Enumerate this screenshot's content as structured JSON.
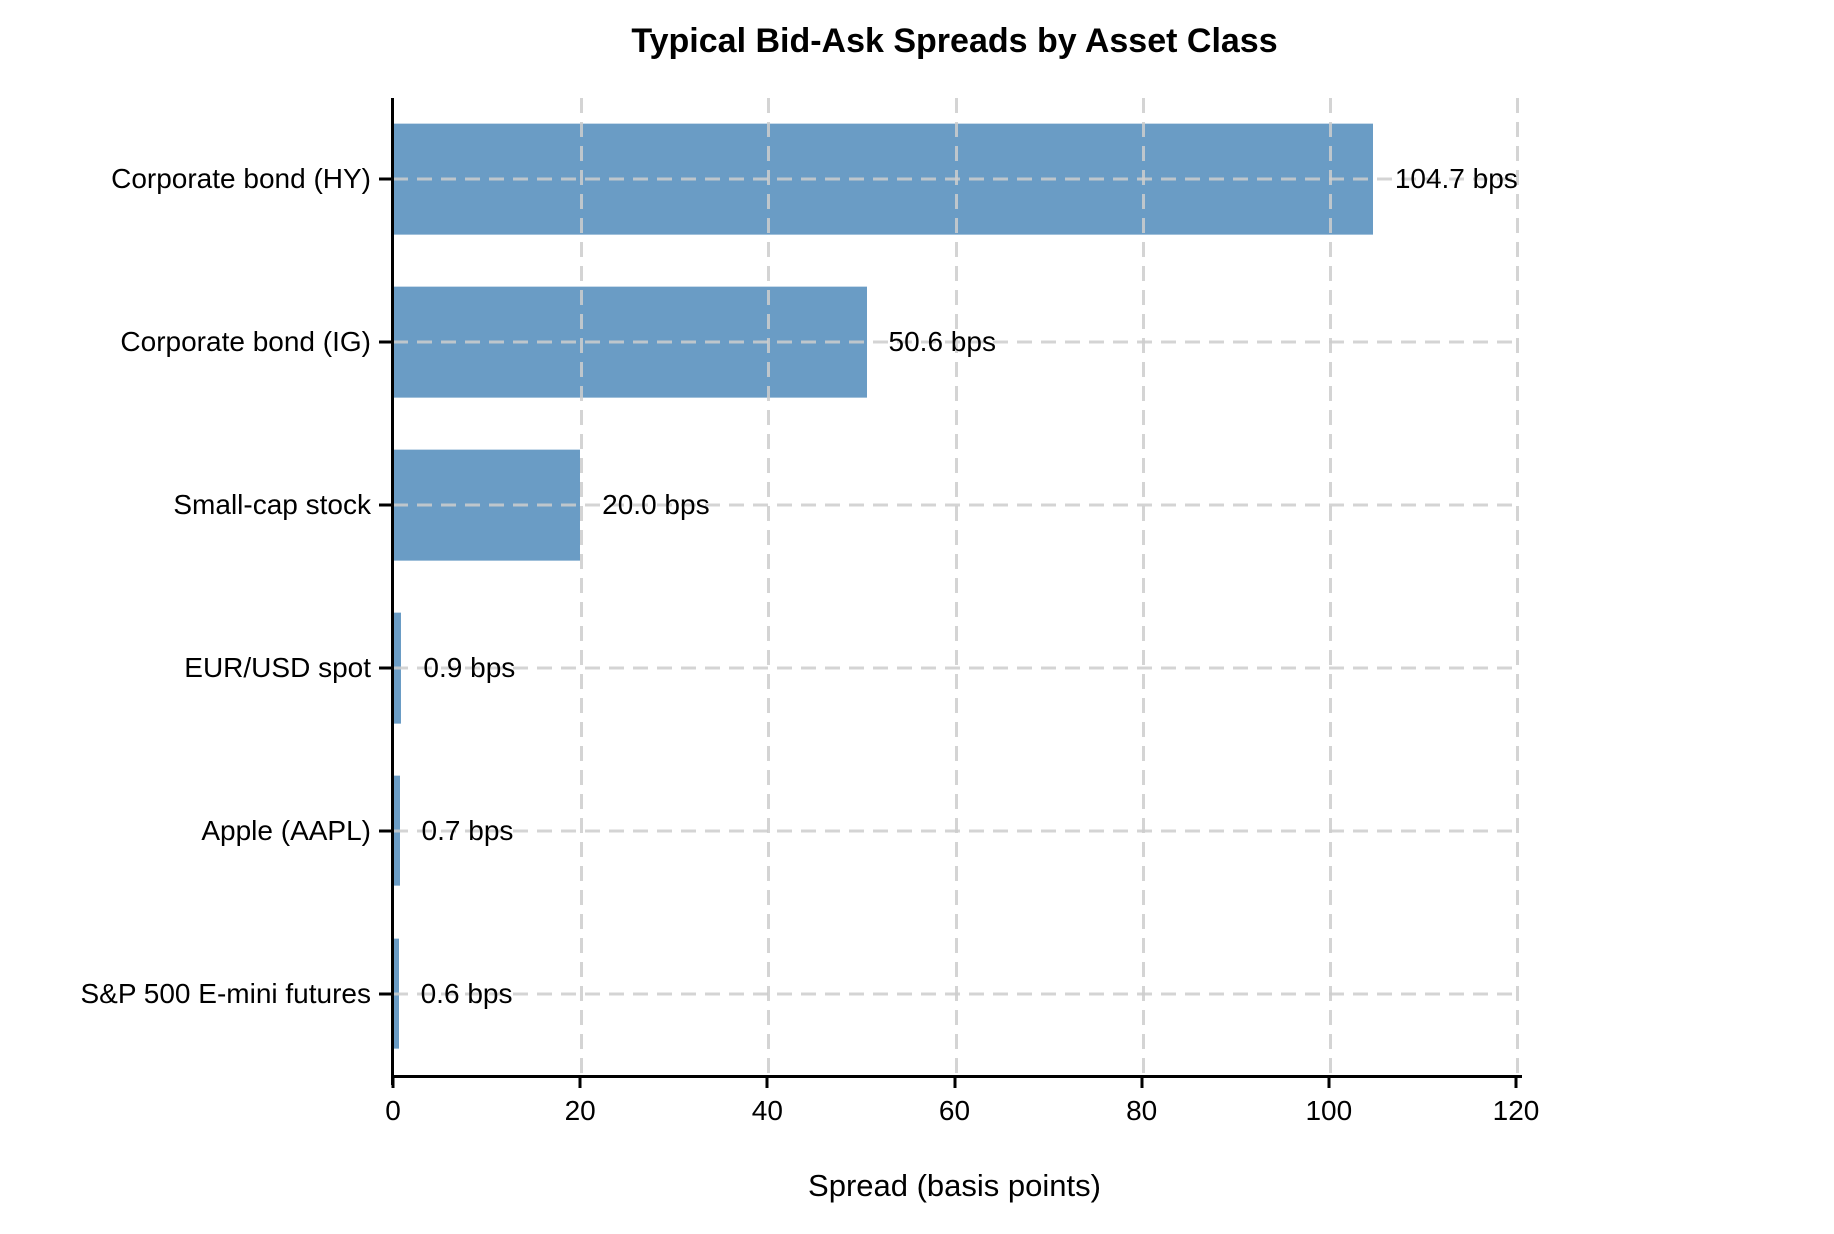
{
  "chart_data": {
    "type": "bar",
    "orientation": "horizontal",
    "title": "Typical Bid-Ask Spreads by Asset Class",
    "xlabel": "Spread (basis points)",
    "categories": [
      "Corporate bond (HY)",
      "Corporate bond (IG)",
      "Small-cap stock",
      "EUR/USD spot",
      "Apple (AAPL)",
      "S&P 500 E-mini futures"
    ],
    "values": [
      104.7,
      50.6,
      20.0,
      0.9,
      0.7,
      0.6
    ],
    "value_labels": [
      "104.7 bps",
      "50.6 bps",
      "20.0 bps",
      "0.9 bps",
      "0.7 bps",
      "0.6 bps"
    ],
    "xlim": [
      0,
      120
    ],
    "xticks": [
      0,
      20,
      40,
      60,
      80,
      100,
      120
    ],
    "bar_color": "#6a9cc5",
    "grid": "dashed",
    "legend": "none"
  }
}
